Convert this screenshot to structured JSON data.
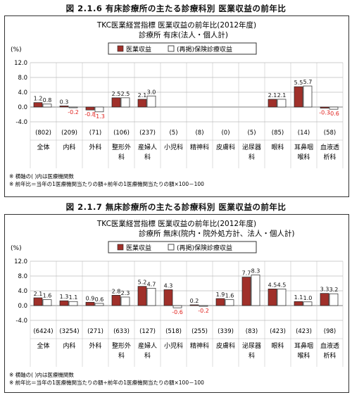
{
  "figures": [
    {
      "caption": "図 2.1.6 有床診療所の主たる診療科別 医業収益の前年比",
      "chart_title_1": "TKC医業経営指標 医業収益の前年比(2012年度)",
      "chart_title_2": "診療所 有床(法人・個人計)",
      "y_unit": "(%)",
      "legend": [
        "医業収益",
        "(再掲)保険診療収益"
      ],
      "notes": [
        "※ 横軸の( )内は医療機関数",
        "※ 前年比＝当年の1医療機関当たりの額÷前年の1医療機関当たりの額×100－100"
      ],
      "chart_data": {
        "type": "bar",
        "ylim": [
          -4.0,
          12.0
        ],
        "yticks": [
          "12.0",
          "8.0",
          "4.0",
          "0.0",
          "-4.0"
        ],
        "categories": [
          {
            "count": "(802)",
            "name": [
              "全体"
            ]
          },
          {
            "count": "(209)",
            "name": [
              "内科"
            ]
          },
          {
            "count": "(71)",
            "name": [
              "外科"
            ]
          },
          {
            "count": "(106)",
            "name": [
              "整形外",
              "科"
            ]
          },
          {
            "count": "(237)",
            "name": [
              "産婦人",
              "科"
            ]
          },
          {
            "count": "(5)",
            "name": [
              "小児科"
            ]
          },
          {
            "count": "(8)",
            "name": [
              "精神科"
            ]
          },
          {
            "count": "(0)",
            "name": [
              "皮膚科"
            ]
          },
          {
            "count": "(5)",
            "name": [
              "泌尿器",
              "科"
            ]
          },
          {
            "count": "(85)",
            "name": [
              "眼科"
            ]
          },
          {
            "count": "(14)",
            "name": [
              "耳鼻咽",
              "喉科"
            ]
          },
          {
            "count": "(58)",
            "name": [
              "血液透",
              "析科"
            ]
          }
        ],
        "series": [
          {
            "name": "医業収益",
            "values": [
              1.2,
              0.3,
              -0.8,
              2.5,
              2.1,
              null,
              null,
              null,
              null,
              2.1,
              5.5,
              -0.3
            ]
          },
          {
            "name": "(再掲)保険診療収益",
            "values": [
              0.8,
              -0.2,
              -1.3,
              2.5,
              3.0,
              null,
              null,
              null,
              null,
              2.1,
              5.7,
              -0.6
            ]
          }
        ]
      }
    },
    {
      "caption": "図 2.1.7 無床診療所の主たる診療科別 医業収益の前年比",
      "chart_title_1": "TKC医業経営指標 医業収益の前年比(2012年度)",
      "chart_title_2": "診療所 無床(院内・院外処方計、法人・個人計)",
      "y_unit": "(%)",
      "legend": [
        "医業収益",
        "(再掲)保険診療収益"
      ],
      "notes": [
        "※ 横軸の( )内は医療機関数",
        "※ 前年比＝当年の1医療機関当たりの額÷前年の1医療機関当たりの額×100－100"
      ],
      "chart_data": {
        "type": "bar",
        "ylim": [
          -4.0,
          12.0
        ],
        "yticks": [
          "12.0",
          "8.0",
          "4.0",
          "0.0",
          "-4.0"
        ],
        "categories": [
          {
            "count": "(6424)",
            "name": [
              "全体"
            ]
          },
          {
            "count": "(3254)",
            "name": [
              "内科"
            ]
          },
          {
            "count": "(271)",
            "name": [
              "外科"
            ]
          },
          {
            "count": "(633)",
            "name": [
              "整形外",
              "科"
            ]
          },
          {
            "count": "(127)",
            "name": [
              "産婦人",
              "科"
            ]
          },
          {
            "count": "(518)",
            "name": [
              "小児科"
            ]
          },
          {
            "count": "(255)",
            "name": [
              "精神科"
            ]
          },
          {
            "count": "(339)",
            "name": [
              "皮膚科"
            ]
          },
          {
            "count": "(83)",
            "name": [
              "泌尿器",
              "科"
            ]
          },
          {
            "count": "(423)",
            "name": [
              "眼科"
            ]
          },
          {
            "count": "(423)",
            "name": [
              "耳鼻咽",
              "喉科"
            ]
          },
          {
            "count": "(98)",
            "name": [
              "血液透",
              "析科"
            ]
          }
        ],
        "series": [
          {
            "name": "医業収益",
            "values": [
              2.1,
              1.3,
              0.9,
              2.8,
              5.2,
              4.3,
              0.2,
              1.9,
              7.7,
              4.5,
              1.1,
              3.3
            ]
          },
          {
            "name": "(再掲)保険診療収益",
            "values": [
              1.6,
              1.1,
              0.6,
              2.3,
              4.7,
              -0.6,
              -0.2,
              1.6,
              8.3,
              4.5,
              1.0,
              3.2
            ]
          }
        ]
      }
    }
  ],
  "colors": {
    "series1": "#a0302a",
    "series2": "#ffffff",
    "negative_label": "#e0201c",
    "grid": "#999999"
  }
}
